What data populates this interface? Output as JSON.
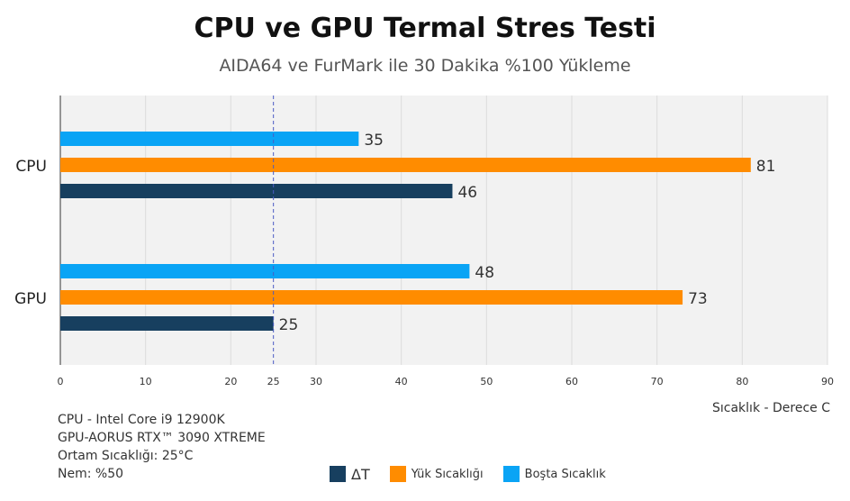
{
  "chart_data": {
    "type": "bar",
    "orientation": "horizontal",
    "title": "CPU ve GPU Termal Stres Testi",
    "subtitle": "AIDA64 ve FurMark ile 30 Dakika %100 Yükleme",
    "xlabel": "Sıcaklık - Derece C",
    "categories": [
      "CPU",
      "GPU"
    ],
    "xlim": [
      0,
      90
    ],
    "xticks": [
      0,
      10,
      20,
      25,
      30,
      40,
      50,
      60,
      70,
      80,
      90
    ],
    "reference_line": 25,
    "grid": true,
    "legend_position": "bottom",
    "series": [
      {
        "name": "Boşta Sıcaklık",
        "color": "#0aa4f5",
        "values": [
          35,
          48
        ]
      },
      {
        "name": "Yük Sıcaklığı",
        "color": "#ff8c00",
        "values": [
          81,
          73
        ]
      },
      {
        "name": "ΔT",
        "color": "#173f5f",
        "values": [
          46,
          25
        ]
      }
    ],
    "legend_order": [
      "ΔT",
      "Yük Sıcaklığı",
      "Boşta Sıcaklık"
    ]
  },
  "notes": [
    "CPU - Intel Core i9 12900K",
    "GPU-AORUS RTX™ 3090 XTREME",
    "Ortam Sıcaklığı: 25°C",
    "Nem: %50"
  ]
}
